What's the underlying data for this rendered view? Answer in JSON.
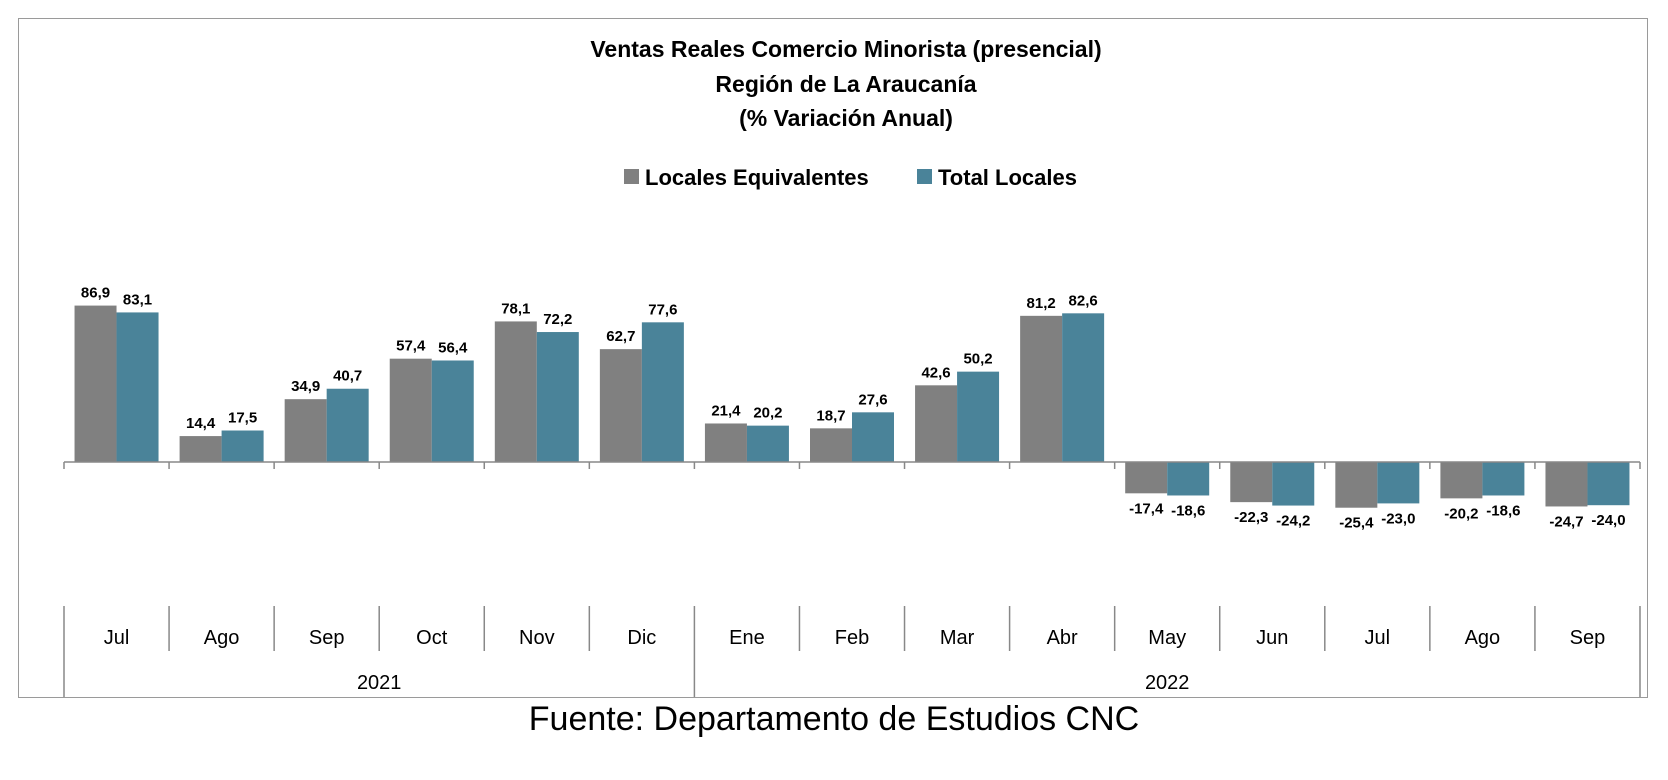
{
  "chart_data": {
    "type": "bar",
    "title": [
      "Ventas Reales Comercio Minorista (presencial)",
      "Región de La Araucanía",
      "(% Variación Anual)"
    ],
    "categories": [
      "Jul",
      "Ago",
      "Sep",
      "Oct",
      "Nov",
      "Dic",
      "Ene",
      "Feb",
      "Mar",
      "Abr",
      "May",
      "Jun",
      "Jul",
      "Ago",
      "Sep"
    ],
    "category_groups": [
      {
        "label": "2021",
        "count": 6
      },
      {
        "label": "2022",
        "count": 9
      }
    ],
    "series": [
      {
        "name": "Locales Equivalentes",
        "color": "#808080",
        "values": [
          86.9,
          14.4,
          34.9,
          57.4,
          78.1,
          62.7,
          21.4,
          18.7,
          42.6,
          81.2,
          -17.4,
          -22.3,
          -25.4,
          -20.2,
          -24.7
        ],
        "labels": [
          "86,9",
          "14,4",
          "34,9",
          "57,4",
          "78,1",
          "62,7",
          "21,4",
          "18,7",
          "42,6",
          "81,2",
          "-17,4",
          "-22,3",
          "-25,4",
          "-20,2",
          "-24,7"
        ]
      },
      {
        "name": "Total Locales",
        "color": "#4a8399",
        "values": [
          83.1,
          17.5,
          40.7,
          56.4,
          72.2,
          77.6,
          20.2,
          27.6,
          50.2,
          82.6,
          -18.6,
          -24.2,
          -23.0,
          -18.6,
          -24.0
        ],
        "labels": [
          "83,1",
          "17,5",
          "40,7",
          "56,4",
          "72,2",
          "77,6",
          "20,2",
          "27,6",
          "50,2",
          "82,6",
          "-18,6",
          "-24,2",
          "-23,0",
          "-18,6",
          "-24,0"
        ]
      }
    ],
    "legend_position": "top-center",
    "grid": false,
    "ylim": [
      -70,
      100
    ]
  },
  "source": "Fuente: Departamento de Estudios CNC"
}
